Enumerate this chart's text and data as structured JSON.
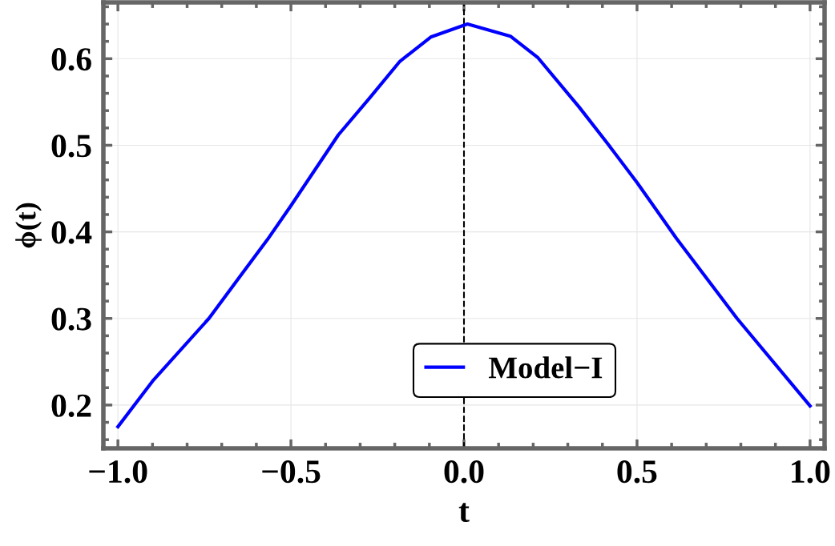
{
  "chart_data": {
    "type": "line",
    "xlabel": "t",
    "ylabel": "ϕ(t)",
    "x": [
      -1.0,
      -0.897,
      -0.737,
      -0.639,
      -0.568,
      -0.497,
      -0.363,
      -0.274,
      -0.185,
      -0.096,
      0.01,
      0.134,
      0.214,
      0.333,
      0.413,
      0.5,
      0.613,
      0.789,
      1.0
    ],
    "series": [
      {
        "name": "Model−I",
        "color": "#0000ff",
        "values": [
          0.175,
          0.229,
          0.3,
          0.353,
          0.391,
          0.432,
          0.512,
          0.554,
          0.597,
          0.625,
          0.64,
          0.626,
          0.601,
          0.544,
          0.503,
          0.457,
          0.393,
          0.3,
          0.199
        ]
      }
    ],
    "xlim": [
      -1.042,
      1.042
    ],
    "ylim": [
      0.15,
      0.665
    ],
    "xticks": [
      {
        "value": -1.0,
        "label": "−1.0"
      },
      {
        "value": -0.5,
        "label": "−0.5"
      },
      {
        "value": 0.0,
        "label": "0.0"
      },
      {
        "value": 0.5,
        "label": "0.5"
      },
      {
        "value": 1.0,
        "label": "1.0"
      }
    ],
    "yticks": [
      {
        "value": 0.2,
        "label": "0.2"
      },
      {
        "value": 0.3,
        "label": "0.3"
      },
      {
        "value": 0.4,
        "label": "0.4"
      },
      {
        "value": 0.5,
        "label": "0.5"
      },
      {
        "value": 0.6,
        "label": "0.6"
      }
    ],
    "ref_lines": [
      {
        "axis": "x",
        "value": 0,
        "color": "#000000",
        "line_style": "dashed"
      }
    ],
    "grid": true,
    "legend": "bottom",
    "line_style": "solid",
    "marker": "none"
  }
}
